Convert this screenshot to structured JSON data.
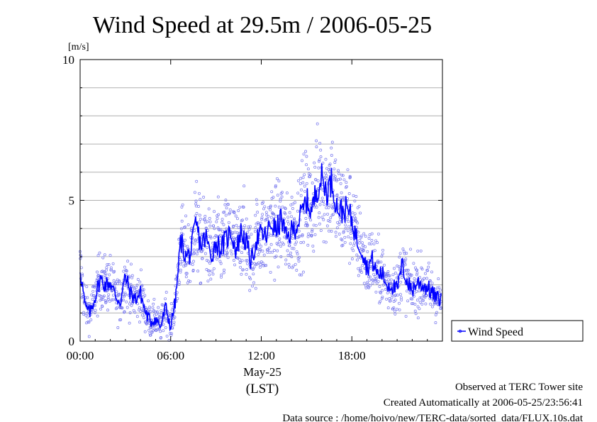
{
  "chart_data": {
    "type": "line",
    "title": "Wind Speed at 29.5m / 2006-05-25",
    "ylabel": "[m/s]",
    "xlabel": "(LST)",
    "date_label": "May-25",
    "ylim": [
      0,
      10
    ],
    "xlim": [
      "2006-05-25 00:00",
      "2006-05-26 00:00"
    ],
    "x_ticks": [
      "00:00",
      "06:00",
      "12:00",
      "18:00"
    ],
    "y_ticks": [
      "0",
      "5",
      "10"
    ],
    "grid": "horizontal every 1 m/s",
    "legend": {
      "position": "right",
      "entries": [
        "Wind Speed"
      ]
    },
    "series": [
      {
        "name": "Wind Speed",
        "color": "#0000ff",
        "scatter_color": "#7777ee",
        "scatter_spread_note": "raw 10 s samples shown as open circles around the mean line",
        "x": [
          "00:00",
          "00:20",
          "00:40",
          "01:00",
          "01:20",
          "01:40",
          "02:00",
          "02:20",
          "02:40",
          "03:00",
          "03:20",
          "03:40",
          "04:00",
          "04:20",
          "04:40",
          "05:00",
          "05:20",
          "05:40",
          "06:00",
          "06:20",
          "06:40",
          "07:00",
          "07:20",
          "07:40",
          "08:00",
          "08:20",
          "08:40",
          "09:00",
          "09:20",
          "09:40",
          "10:00",
          "10:20",
          "10:40",
          "11:00",
          "11:20",
          "11:40",
          "12:00",
          "12:20",
          "12:40",
          "13:00",
          "13:20",
          "13:40",
          "14:00",
          "14:20",
          "14:40",
          "15:00",
          "15:20",
          "15:40",
          "16:00",
          "16:20",
          "16:40",
          "17:00",
          "17:20",
          "17:40",
          "18:00",
          "18:20",
          "18:40",
          "19:00",
          "19:20",
          "19:40",
          "20:00",
          "20:20",
          "20:40",
          "21:00",
          "21:20",
          "21:40",
          "22:00",
          "22:20",
          "22:40",
          "23:00",
          "23:20",
          "23:40"
        ],
        "values": [
          2.6,
          1.2,
          1.0,
          1.6,
          2.2,
          2.0,
          2.1,
          1.6,
          1.4,
          2.3,
          1.7,
          1.5,
          1.7,
          1.0,
          0.7,
          0.8,
          0.5,
          1.2,
          0.5,
          1.5,
          3.6,
          3.0,
          3.1,
          4.2,
          3.4,
          3.7,
          3.0,
          3.5,
          3.3,
          3.6,
          3.9,
          3.2,
          3.9,
          3.5,
          2.8,
          3.6,
          3.8,
          3.7,
          4.2,
          3.9,
          4.4,
          3.6,
          3.9,
          4.1,
          4.5,
          5.0,
          4.6,
          5.4,
          5.8,
          5.3,
          5.7,
          4.8,
          4.6,
          4.7,
          4.3,
          3.6,
          3.3,
          2.6,
          2.9,
          2.4,
          2.4,
          2.0,
          2.0,
          1.8,
          2.7,
          2.1,
          1.8,
          2.1,
          2.0,
          1.9,
          1.7,
          1.5
        ]
      }
    ]
  },
  "footer": {
    "observed": "Observed at TERC Tower site",
    "created": "Created Automatically at 2006-05-25/23:56:41",
    "source": "Data source : /home/hoivo/new/TERC-data/sorted_data/FLUX.10s.dat"
  }
}
